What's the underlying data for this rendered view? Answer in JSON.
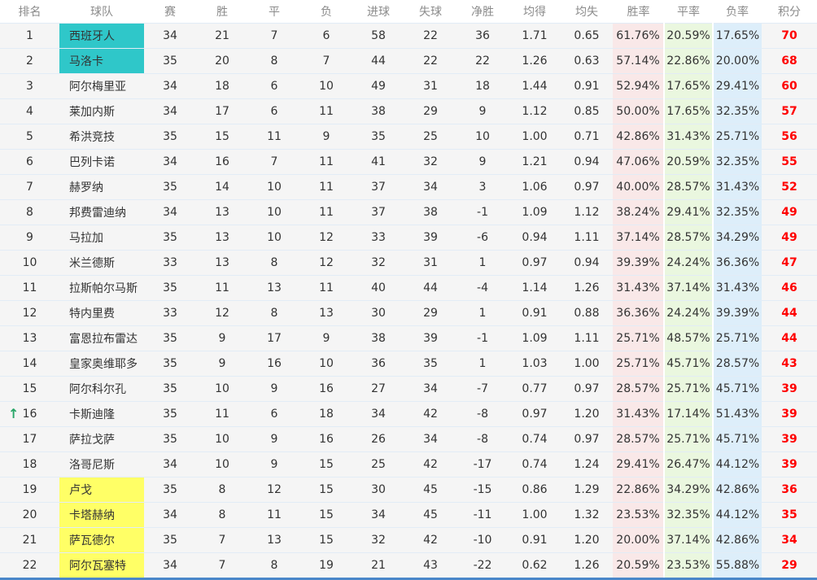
{
  "icons": {
    "up_arrow": "↑"
  },
  "colors": {
    "promotion_highlight": "#2fc7c9",
    "relegation_highlight": "#ffff66",
    "win_rate_bg": "#f9e8e8",
    "draw_rate_bg": "#eaf7df",
    "loss_rate_bg": "#ddeefa",
    "points_text": "#ff0000",
    "up_arrow": "#27a567",
    "table_bottom_border": "#4a87c9"
  },
  "table": {
    "columns": [
      {
        "key": "rank",
        "label": "排名"
      },
      {
        "key": "team",
        "label": "球队"
      },
      {
        "key": "played",
        "label": "赛"
      },
      {
        "key": "wins",
        "label": "胜"
      },
      {
        "key": "draws",
        "label": "平"
      },
      {
        "key": "losses",
        "label": "负"
      },
      {
        "key": "goals_for",
        "label": "进球"
      },
      {
        "key": "goals_against",
        "label": "失球"
      },
      {
        "key": "goal_diff",
        "label": "净胜"
      },
      {
        "key": "avg_scored",
        "label": "均得"
      },
      {
        "key": "avg_conceded",
        "label": "均失"
      },
      {
        "key": "win_rate",
        "label": "胜率"
      },
      {
        "key": "draw_rate",
        "label": "平率"
      },
      {
        "key": "loss_rate",
        "label": "负率"
      },
      {
        "key": "points",
        "label": "积分"
      }
    ],
    "rows": [
      {
        "rank": "1",
        "team": "西班牙人",
        "played": "34",
        "wins": "21",
        "draws": "7",
        "losses": "6",
        "goals_for": "58",
        "goals_against": "22",
        "goal_diff": "36",
        "avg_scored": "1.71",
        "avg_conceded": "0.65",
        "win_rate": "61.76%",
        "draw_rate": "20.59%",
        "loss_rate": "17.65%",
        "points": "70",
        "highlight": "teal"
      },
      {
        "rank": "2",
        "team": "马洛卡",
        "played": "35",
        "wins": "20",
        "draws": "8",
        "losses": "7",
        "goals_for": "44",
        "goals_against": "22",
        "goal_diff": "22",
        "avg_scored": "1.26",
        "avg_conceded": "0.63",
        "win_rate": "57.14%",
        "draw_rate": "22.86%",
        "loss_rate": "20.00%",
        "points": "68",
        "highlight": "teal"
      },
      {
        "rank": "3",
        "team": "阿尔梅里亚",
        "played": "34",
        "wins": "18",
        "draws": "6",
        "losses": "10",
        "goals_for": "49",
        "goals_against": "31",
        "goal_diff": "18",
        "avg_scored": "1.44",
        "avg_conceded": "0.91",
        "win_rate": "52.94%",
        "draw_rate": "17.65%",
        "loss_rate": "29.41%",
        "points": "60"
      },
      {
        "rank": "4",
        "team": "莱加内斯",
        "played": "34",
        "wins": "17",
        "draws": "6",
        "losses": "11",
        "goals_for": "38",
        "goals_against": "29",
        "goal_diff": "9",
        "avg_scored": "1.12",
        "avg_conceded": "0.85",
        "win_rate": "50.00%",
        "draw_rate": "17.65%",
        "loss_rate": "32.35%",
        "points": "57"
      },
      {
        "rank": "5",
        "team": "希洪竞技",
        "played": "35",
        "wins": "15",
        "draws": "11",
        "losses": "9",
        "goals_for": "35",
        "goals_against": "25",
        "goal_diff": "10",
        "avg_scored": "1.00",
        "avg_conceded": "0.71",
        "win_rate": "42.86%",
        "draw_rate": "31.43%",
        "loss_rate": "25.71%",
        "points": "56"
      },
      {
        "rank": "6",
        "team": "巴列卡诺",
        "played": "34",
        "wins": "16",
        "draws": "7",
        "losses": "11",
        "goals_for": "41",
        "goals_against": "32",
        "goal_diff": "9",
        "avg_scored": "1.21",
        "avg_conceded": "0.94",
        "win_rate": "47.06%",
        "draw_rate": "20.59%",
        "loss_rate": "32.35%",
        "points": "55"
      },
      {
        "rank": "7",
        "team": "赫罗纳",
        "played": "35",
        "wins": "14",
        "draws": "10",
        "losses": "11",
        "goals_for": "37",
        "goals_against": "34",
        "goal_diff": "3",
        "avg_scored": "1.06",
        "avg_conceded": "0.97",
        "win_rate": "40.00%",
        "draw_rate": "28.57%",
        "loss_rate": "31.43%",
        "points": "52"
      },
      {
        "rank": "8",
        "team": "邦费雷迪纳",
        "played": "34",
        "wins": "13",
        "draws": "10",
        "losses": "11",
        "goals_for": "37",
        "goals_against": "38",
        "goal_diff": "-1",
        "avg_scored": "1.09",
        "avg_conceded": "1.12",
        "win_rate": "38.24%",
        "draw_rate": "29.41%",
        "loss_rate": "32.35%",
        "points": "49"
      },
      {
        "rank": "9",
        "team": "马拉加",
        "played": "35",
        "wins": "13",
        "draws": "10",
        "losses": "12",
        "goals_for": "33",
        "goals_against": "39",
        "goal_diff": "-6",
        "avg_scored": "0.94",
        "avg_conceded": "1.11",
        "win_rate": "37.14%",
        "draw_rate": "28.57%",
        "loss_rate": "34.29%",
        "points": "49"
      },
      {
        "rank": "10",
        "team": "米兰德斯",
        "played": "33",
        "wins": "13",
        "draws": "8",
        "losses": "12",
        "goals_for": "32",
        "goals_against": "31",
        "goal_diff": "1",
        "avg_scored": "0.97",
        "avg_conceded": "0.94",
        "win_rate": "39.39%",
        "draw_rate": "24.24%",
        "loss_rate": "36.36%",
        "points": "47"
      },
      {
        "rank": "11",
        "team": "拉斯帕尔马斯",
        "played": "35",
        "wins": "11",
        "draws": "13",
        "losses": "11",
        "goals_for": "40",
        "goals_against": "44",
        "goal_diff": "-4",
        "avg_scored": "1.14",
        "avg_conceded": "1.26",
        "win_rate": "31.43%",
        "draw_rate": "37.14%",
        "loss_rate": "31.43%",
        "points": "46"
      },
      {
        "rank": "12",
        "team": "特内里费",
        "played": "33",
        "wins": "12",
        "draws": "8",
        "losses": "13",
        "goals_for": "30",
        "goals_against": "29",
        "goal_diff": "1",
        "avg_scored": "0.91",
        "avg_conceded": "0.88",
        "win_rate": "36.36%",
        "draw_rate": "24.24%",
        "loss_rate": "39.39%",
        "points": "44"
      },
      {
        "rank": "13",
        "team": "富恩拉布雷达",
        "played": "35",
        "wins": "9",
        "draws": "17",
        "losses": "9",
        "goals_for": "38",
        "goals_against": "39",
        "goal_diff": "-1",
        "avg_scored": "1.09",
        "avg_conceded": "1.11",
        "win_rate": "25.71%",
        "draw_rate": "48.57%",
        "loss_rate": "25.71%",
        "points": "44"
      },
      {
        "rank": "14",
        "team": "皇家奥维耶多",
        "played": "35",
        "wins": "9",
        "draws": "16",
        "losses": "10",
        "goals_for": "36",
        "goals_against": "35",
        "goal_diff": "1",
        "avg_scored": "1.03",
        "avg_conceded": "1.00",
        "win_rate": "25.71%",
        "draw_rate": "45.71%",
        "loss_rate": "28.57%",
        "points": "43"
      },
      {
        "rank": "15",
        "team": "阿尔科尔孔",
        "played": "35",
        "wins": "10",
        "draws": "9",
        "losses": "16",
        "goals_for": "27",
        "goals_against": "34",
        "goal_diff": "-7",
        "avg_scored": "0.77",
        "avg_conceded": "0.97",
        "win_rate": "28.57%",
        "draw_rate": "25.71%",
        "loss_rate": "45.71%",
        "points": "39"
      },
      {
        "rank": "16",
        "team": "卡斯迪隆",
        "played": "35",
        "wins": "11",
        "draws": "6",
        "losses": "18",
        "goals_for": "34",
        "goals_against": "42",
        "goal_diff": "-8",
        "avg_scored": "0.97",
        "avg_conceded": "1.20",
        "win_rate": "31.43%",
        "draw_rate": "17.14%",
        "loss_rate": "51.43%",
        "points": "39",
        "arrow": "up"
      },
      {
        "rank": "17",
        "team": "萨拉戈萨",
        "played": "35",
        "wins": "10",
        "draws": "9",
        "losses": "16",
        "goals_for": "26",
        "goals_against": "34",
        "goal_diff": "-8",
        "avg_scored": "0.74",
        "avg_conceded": "0.97",
        "win_rate": "28.57%",
        "draw_rate": "25.71%",
        "loss_rate": "45.71%",
        "points": "39"
      },
      {
        "rank": "18",
        "team": "洛哥尼斯",
        "played": "34",
        "wins": "10",
        "draws": "9",
        "losses": "15",
        "goals_for": "25",
        "goals_against": "42",
        "goal_diff": "-17",
        "avg_scored": "0.74",
        "avg_conceded": "1.24",
        "win_rate": "29.41%",
        "draw_rate": "26.47%",
        "loss_rate": "44.12%",
        "points": "39"
      },
      {
        "rank": "19",
        "team": "卢戈",
        "played": "35",
        "wins": "8",
        "draws": "12",
        "losses": "15",
        "goals_for": "30",
        "goals_against": "45",
        "goal_diff": "-15",
        "avg_scored": "0.86",
        "avg_conceded": "1.29",
        "win_rate": "22.86%",
        "draw_rate": "34.29%",
        "loss_rate": "42.86%",
        "points": "36",
        "highlight": "yellow"
      },
      {
        "rank": "20",
        "team": "卡塔赫纳",
        "played": "34",
        "wins": "8",
        "draws": "11",
        "losses": "15",
        "goals_for": "34",
        "goals_against": "45",
        "goal_diff": "-11",
        "avg_scored": "1.00",
        "avg_conceded": "1.32",
        "win_rate": "23.53%",
        "draw_rate": "32.35%",
        "loss_rate": "44.12%",
        "points": "35",
        "highlight": "yellow"
      },
      {
        "rank": "21",
        "team": "萨瓦德尔",
        "played": "35",
        "wins": "7",
        "draws": "13",
        "losses": "15",
        "goals_for": "32",
        "goals_against": "42",
        "goal_diff": "-10",
        "avg_scored": "0.91",
        "avg_conceded": "1.20",
        "win_rate": "20.00%",
        "draw_rate": "37.14%",
        "loss_rate": "42.86%",
        "points": "34",
        "highlight": "yellow"
      },
      {
        "rank": "22",
        "team": "阿尔瓦塞特",
        "played": "34",
        "wins": "7",
        "draws": "8",
        "losses": "19",
        "goals_for": "21",
        "goals_against": "43",
        "goal_diff": "-22",
        "avg_scored": "0.62",
        "avg_conceded": "1.26",
        "win_rate": "20.59%",
        "draw_rate": "23.53%",
        "loss_rate": "55.88%",
        "points": "29",
        "highlight": "yellow"
      }
    ]
  }
}
